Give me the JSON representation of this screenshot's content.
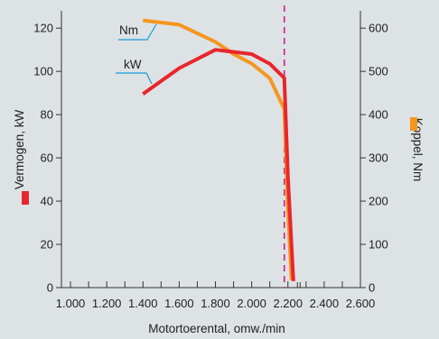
{
  "chart_data": {
    "type": "line",
    "xlabel": "Motortoerental, omw./min",
    "ylabel_left": "Vermogen, kW",
    "ylabel_right": "Koppel, Nm",
    "x_ticks": [
      1000,
      1200,
      1400,
      1600,
      1800,
      2000,
      2200,
      2400,
      2600
    ],
    "x_tick_labels": [
      "1.000",
      "1.200",
      "1.400",
      "1.600",
      "1.800",
      "2.000",
      "2.200",
      "2.400",
      "2.600"
    ],
    "x_minor_ticks": [
      1100,
      1300,
      1500,
      1700,
      1900,
      2100,
      2300,
      2500
    ],
    "xlim": [
      950,
      2600
    ],
    "ylim_left": [
      0,
      128
    ],
    "ylim_right": [
      0,
      640
    ],
    "y_left_ticks": [
      0,
      20,
      40,
      60,
      80,
      100,
      120
    ],
    "y_right_ticks": [
      0,
      100,
      200,
      300,
      400,
      500,
      600
    ],
    "vline_x": 2180,
    "grid": false,
    "series": [
      {
        "name": "Nm",
        "axis": "right",
        "color": "#f5961e",
        "points": [
          [
            1400,
            618
          ],
          [
            1600,
            608
          ],
          [
            1800,
            568
          ],
          [
            1900,
            540
          ],
          [
            2000,
            518
          ],
          [
            2100,
            484
          ],
          [
            2180,
            413
          ],
          [
            2200,
            180
          ],
          [
            2220,
            18
          ]
        ]
      },
      {
        "name": "kW",
        "axis": "left",
        "color": "#e8262d",
        "points": [
          [
            1400,
            89.5
          ],
          [
            1600,
            101.5
          ],
          [
            1800,
            110
          ],
          [
            2000,
            108
          ],
          [
            2100,
            103.5
          ],
          [
            2180,
            97
          ],
          [
            2200,
            51
          ],
          [
            2230,
            3
          ]
        ]
      }
    ]
  }
}
